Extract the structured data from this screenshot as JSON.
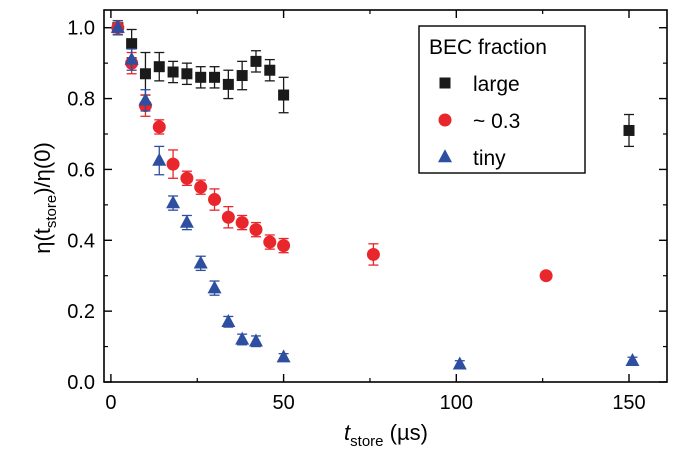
{
  "chart_data": {
    "type": "scatter",
    "xlabel": {
      "main": "t",
      "sub": "store",
      "unit": " (µs)"
    },
    "ylabel": {
      "p1": "η(t",
      "sub": "store",
      "p2": ")/η(0)"
    },
    "xlim": [
      -2,
      161
    ],
    "ylim": [
      0.0,
      1.05
    ],
    "xticks": [
      0,
      50,
      100,
      150
    ],
    "yticks": [
      0.0,
      0.2,
      0.4,
      0.6,
      0.8,
      1.0
    ],
    "ytick_labels": [
      "0.0",
      "0.2",
      "0.4",
      "0.6",
      "0.8",
      "1.0"
    ],
    "legend": {
      "title": "BEC fraction",
      "position": "top-right"
    },
    "series": [
      {
        "name": "large",
        "marker": "square",
        "color": "#1a1a1a",
        "points": [
          {
            "x": 2,
            "y": 1.0,
            "err": 0.02
          },
          {
            "x": 6,
            "y": 0.955,
            "err": 0.04
          },
          {
            "x": 10,
            "y": 0.87,
            "err": 0.06
          },
          {
            "x": 14,
            "y": 0.89,
            "err": 0.04
          },
          {
            "x": 18,
            "y": 0.875,
            "err": 0.03
          },
          {
            "x": 22,
            "y": 0.87,
            "err": 0.03
          },
          {
            "x": 26,
            "y": 0.86,
            "err": 0.03
          },
          {
            "x": 30,
            "y": 0.86,
            "err": 0.03
          },
          {
            "x": 34,
            "y": 0.84,
            "err": 0.04
          },
          {
            "x": 38,
            "y": 0.865,
            "err": 0.04
          },
          {
            "x": 42,
            "y": 0.905,
            "err": 0.03
          },
          {
            "x": 46,
            "y": 0.88,
            "err": 0.03
          },
          {
            "x": 50,
            "y": 0.81,
            "err": 0.05
          },
          {
            "x": 150,
            "y": 0.71,
            "err": 0.045
          }
        ]
      },
      {
        "name": "~ 0.3",
        "marker": "circle",
        "color": "#e8262b",
        "points": [
          {
            "x": 2,
            "y": 1.0,
            "err": 0.02
          },
          {
            "x": 6,
            "y": 0.9,
            "err": 0.03
          },
          {
            "x": 10,
            "y": 0.78,
            "err": 0.03
          },
          {
            "x": 14,
            "y": 0.72,
            "err": 0.02
          },
          {
            "x": 18,
            "y": 0.615,
            "err": 0.04
          },
          {
            "x": 22,
            "y": 0.575,
            "err": 0.02
          },
          {
            "x": 26,
            "y": 0.55,
            "err": 0.02
          },
          {
            "x": 30,
            "y": 0.515,
            "err": 0.03
          },
          {
            "x": 34,
            "y": 0.465,
            "err": 0.03
          },
          {
            "x": 38,
            "y": 0.45,
            "err": 0.02
          },
          {
            "x": 42,
            "y": 0.43,
            "err": 0.02
          },
          {
            "x": 46,
            "y": 0.395,
            "err": 0.02
          },
          {
            "x": 50,
            "y": 0.385,
            "err": 0.02
          },
          {
            "x": 76,
            "y": 0.36,
            "err": 0.03
          },
          {
            "x": 126,
            "y": 0.3,
            "err": 0.01
          }
        ]
      },
      {
        "name": "tiny",
        "marker": "triangle",
        "color": "#2e4fa0",
        "points": [
          {
            "x": 2,
            "y": 1.0,
            "err": 0.02
          },
          {
            "x": 6,
            "y": 0.91,
            "err": 0.03
          },
          {
            "x": 10,
            "y": 0.795,
            "err": 0.03
          },
          {
            "x": 14,
            "y": 0.625,
            "err": 0.04
          },
          {
            "x": 18,
            "y": 0.505,
            "err": 0.02
          },
          {
            "x": 22,
            "y": 0.45,
            "err": 0.02
          },
          {
            "x": 26,
            "y": 0.335,
            "err": 0.02
          },
          {
            "x": 30,
            "y": 0.265,
            "err": 0.02
          },
          {
            "x": 34,
            "y": 0.17,
            "err": 0.015
          },
          {
            "x": 38,
            "y": 0.12,
            "err": 0.015
          },
          {
            "x": 42,
            "y": 0.115,
            "err": 0.015
          },
          {
            "x": 50,
            "y": 0.07,
            "err": 0.01
          },
          {
            "x": 101,
            "y": 0.05,
            "err": 0.01
          },
          {
            "x": 151,
            "y": 0.06,
            "err": 0.01
          }
        ]
      }
    ]
  }
}
